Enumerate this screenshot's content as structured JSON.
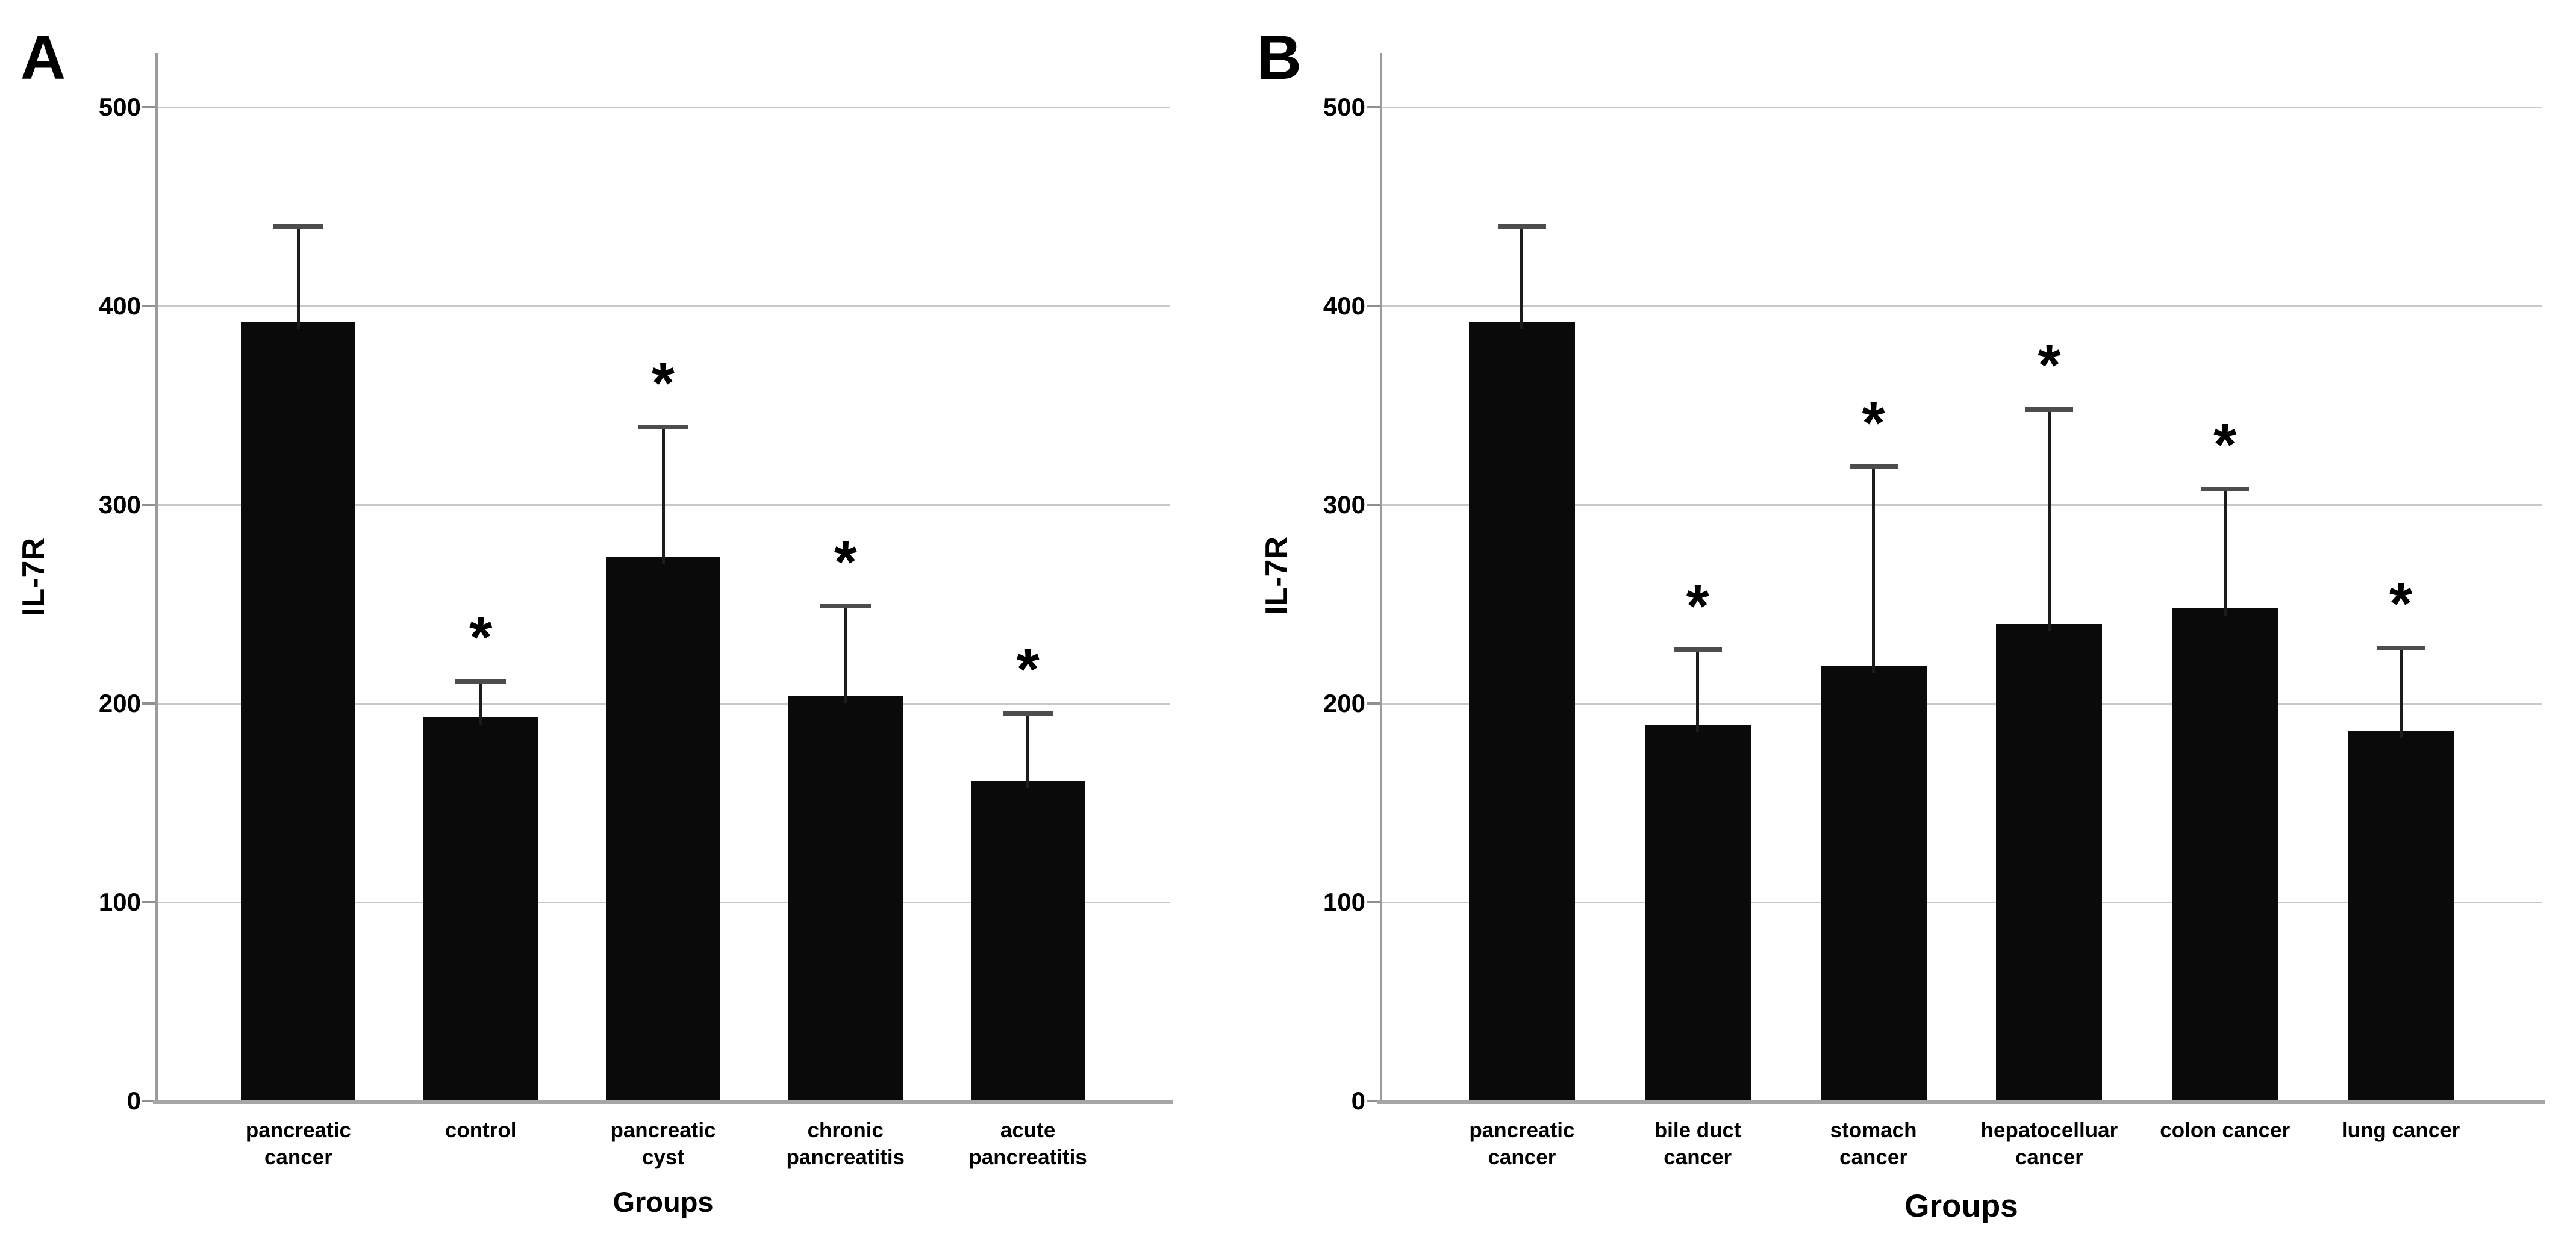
{
  "figure": {
    "background": "#ffffff",
    "colors": {
      "bar": "#0a0a0a",
      "grid": "#c9c9c9",
      "axis": "#9b9b9b",
      "baseline": "#a6a6a6",
      "tick": "#8f8f8f",
      "error_stem": "#1c1c1c",
      "error_cap": "#4d4d4d",
      "text": "#000000"
    }
  },
  "chart_data": [
    {
      "panel_label": "A",
      "type": "bar",
      "title": "",
      "ylabel": "IL-7R",
      "xlabel": "Groups",
      "ylim": [
        0,
        527
      ],
      "yticks": [
        0,
        100,
        200,
        300,
        400,
        500
      ],
      "grid": true,
      "legend": null,
      "sig_symbol": "*",
      "categories": [
        [
          "pancreatic",
          "cancer"
        ],
        [
          "control"
        ],
        [
          "pancreatic",
          "cyst"
        ],
        [
          "chronic",
          "pancreatitis"
        ],
        [
          "acute",
          "pancreatitis"
        ]
      ],
      "values": [
        392,
        193,
        274,
        204,
        161
      ],
      "error_top": [
        440,
        211,
        339,
        249,
        195
      ],
      "significant": [
        false,
        true,
        true,
        true,
        true
      ]
    },
    {
      "panel_label": "B",
      "type": "bar",
      "title": "",
      "ylabel": "IL-7R",
      "xlabel": "Groups",
      "ylim": [
        0,
        527
      ],
      "yticks": [
        0,
        100,
        200,
        300,
        400,
        500
      ],
      "grid": true,
      "legend": null,
      "sig_symbol": "*",
      "categories": [
        [
          "pancreatic",
          "cancer"
        ],
        [
          "bile duct",
          "cancer"
        ],
        [
          "stomach",
          "cancer"
        ],
        [
          "hepatocelluar",
          "cancer"
        ],
        [
          "colon cancer"
        ],
        [
          "lung cancer"
        ]
      ],
      "values": [
        392,
        189,
        219,
        240,
        248,
        186
      ],
      "error_top": [
        440,
        227,
        319,
        348,
        308,
        228
      ],
      "significant": [
        false,
        true,
        true,
        true,
        true,
        true
      ]
    }
  ]
}
